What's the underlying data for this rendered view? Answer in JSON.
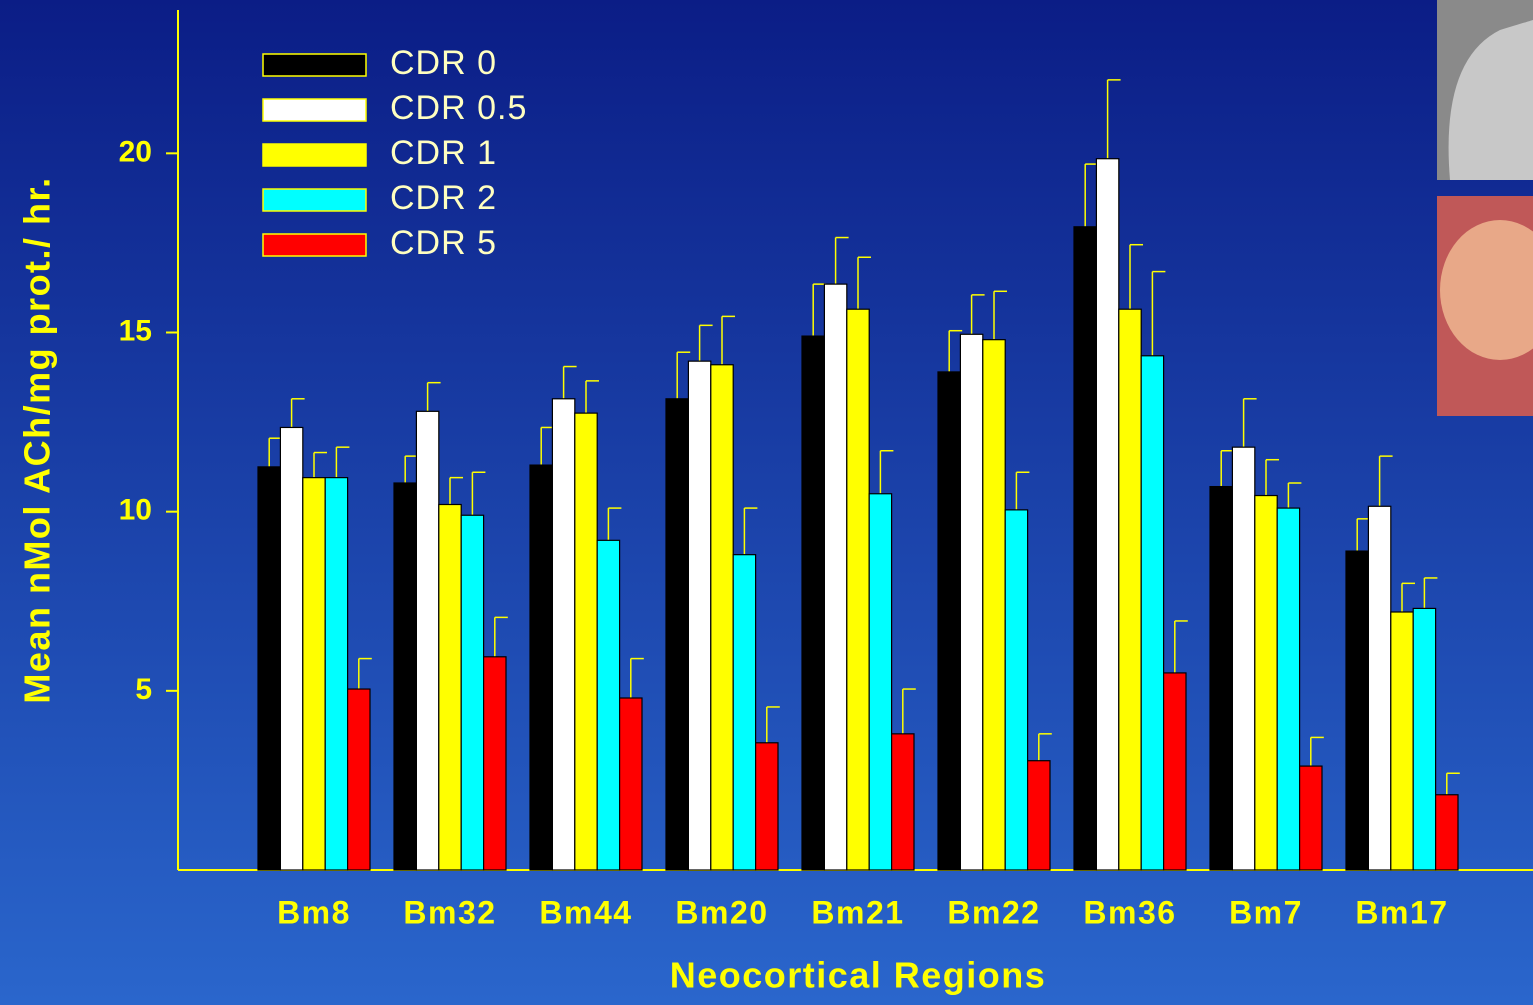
{
  "chart_data": {
    "type": "bar",
    "x_label": "Neocortical Regions",
    "y_label": "Mean nMol ACh/mg prot./ hr.",
    "categories": [
      "Bm8",
      "Bm32",
      "Bm44",
      "Bm20",
      "Bm21",
      "Bm22",
      "Bm36",
      "Bm7",
      "Bm17"
    ],
    "series": [
      {
        "name": "CDR 0",
        "color": "#000000",
        "values": [
          11.25,
          10.8,
          11.3,
          13.15,
          14.9,
          13.9,
          17.95,
          10.7,
          8.9
        ],
        "errors": [
          0.8,
          0.75,
          1.05,
          1.3,
          1.45,
          1.15,
          1.75,
          1.0,
          0.9
        ]
      },
      {
        "name": "CDR 0.5",
        "color": "#ffffff",
        "values": [
          12.35,
          12.8,
          13.15,
          14.2,
          16.35,
          14.95,
          19.85,
          11.8,
          10.15
        ],
        "errors": [
          0.8,
          0.8,
          0.9,
          1.0,
          1.3,
          1.1,
          2.2,
          1.35,
          1.4
        ]
      },
      {
        "name": "CDR 1",
        "color": "#ffff00",
        "values": [
          10.95,
          10.2,
          12.75,
          14.1,
          15.65,
          14.8,
          15.65,
          10.45,
          7.2
        ],
        "errors": [
          0.7,
          0.75,
          0.9,
          1.35,
          1.45,
          1.35,
          1.8,
          1.0,
          0.8
        ]
      },
      {
        "name": "CDR 2",
        "color": "#00ffff",
        "values": [
          10.95,
          9.9,
          9.2,
          8.8,
          10.5,
          10.05,
          14.35,
          10.1,
          7.3
        ],
        "errors": [
          0.85,
          1.2,
          0.9,
          1.3,
          1.2,
          1.05,
          2.35,
          0.7,
          0.85
        ]
      },
      {
        "name": "CDR 5",
        "color": "#ff0000",
        "values": [
          5.05,
          5.95,
          4.8,
          3.55,
          3.8,
          3.05,
          5.5,
          2.9,
          2.1
        ],
        "errors": [
          0.85,
          1.1,
          1.1,
          1.0,
          1.25,
          0.75,
          1.45,
          0.8,
          0.6
        ]
      }
    ],
    "ylim": [
      0,
      24
    ],
    "yticks": [
      5,
      10,
      15,
      20
    ]
  }
}
